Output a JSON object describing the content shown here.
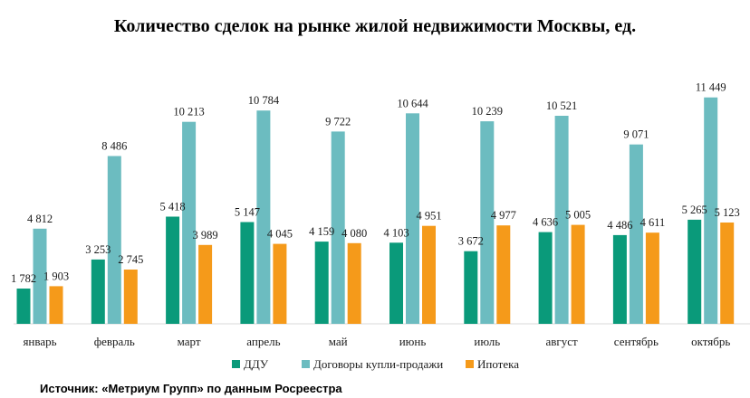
{
  "chart_data": {
    "type": "bar",
    "title": "Количество сделок на рынке жилой недвижимости Москвы, ед.",
    "categories": [
      "январь",
      "февраль",
      "март",
      "апрель",
      "май",
      "июнь",
      "июль",
      "август",
      "сентябрь",
      "октябрь"
    ],
    "series": [
      {
        "name": "ДДУ",
        "color": "#0a9a7a",
        "values": [
          1782,
          3253,
          5418,
          5147,
          4159,
          4103,
          3672,
          4636,
          4486,
          5265
        ],
        "labels": [
          "1 782",
          "3 253",
          "5 418",
          "5 147",
          "4 159",
          "4 103",
          "3 672",
          "4 636",
          "4 486",
          "5 265"
        ]
      },
      {
        "name": "Договоры купли-продажи",
        "color": "#6cbcc0",
        "values": [
          4812,
          8486,
          10213,
          10784,
          9722,
          10644,
          10239,
          10521,
          9071,
          11449
        ],
        "labels": [
          "4 812",
          "8 486",
          "10 213",
          "10 784",
          "9 722",
          "10 644",
          "10 239",
          "10 521",
          "9 071",
          "11 449"
        ]
      },
      {
        "name": "Ипотека",
        "color": "#f59a1a",
        "values": [
          1903,
          2745,
          3989,
          4045,
          4080,
          4951,
          4977,
          5005,
          4611,
          5123
        ],
        "labels": [
          "1 903",
          "2 745",
          "3 989",
          "4 045",
          "4 080",
          "4 951",
          "4 977",
          "5 005",
          "4 611",
          "5 123"
        ]
      }
    ],
    "ylim": [
      0,
      11800
    ],
    "grid": false,
    "legend": "bottom"
  },
  "source": "Источник: «Метриум Групп» по данным Росреестра"
}
